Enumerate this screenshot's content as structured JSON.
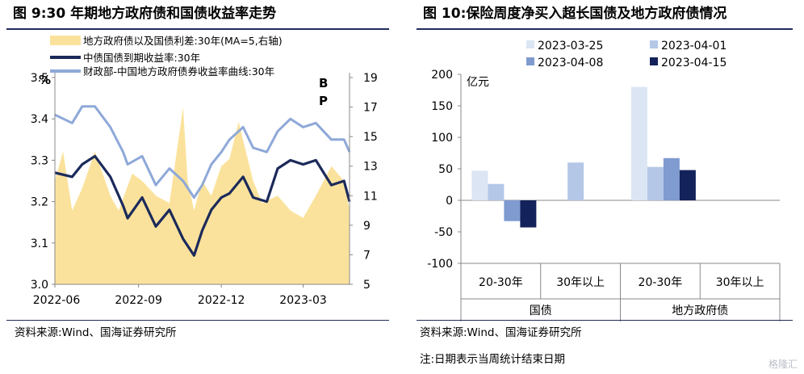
{
  "left": {
    "title": "图 9:30 年期地方政府债和国债收益率走势",
    "source": "资料来源:Wind、国海证券研究所",
    "chart_data": {
      "type": "line",
      "left_axis_unit": "%",
      "right_axis_unit": "BP",
      "left_ylim": [
        3.0,
        3.5
      ],
      "left_ticks": [
        "3.0",
        "3.1",
        "3.2",
        "3.3",
        "3.4",
        "3.5"
      ],
      "right_ylim": [
        5,
        19
      ],
      "right_ticks": [
        "5",
        "7",
        "9",
        "11",
        "13",
        "15",
        "17",
        "19"
      ],
      "x_ticks": [
        "2022-06",
        "2022-09",
        "2022-12",
        "2023-03"
      ],
      "x_range": [
        "2022-06-01",
        "2023-04-21"
      ],
      "series": [
        {
          "name": "地方政府债以及国债利差:30年(MA=5,右轴)",
          "kind": "area",
          "axis": "right",
          "color": "#fbe29c",
          "x": [
            "2022-06-01",
            "2022-06-10",
            "2022-06-20",
            "2022-07-01",
            "2022-07-15",
            "2022-08-01",
            "2022-08-10",
            "2022-08-25",
            "2022-09-05",
            "2022-09-20",
            "2022-10-05",
            "2022-10-20",
            "2022-10-25",
            "2022-11-01",
            "2022-11-10",
            "2022-11-20",
            "2022-12-01",
            "2022-12-10",
            "2022-12-20",
            "2023-01-05",
            "2023-01-15",
            "2023-02-01",
            "2023-02-15",
            "2023-03-01",
            "2023-03-15",
            "2023-04-01",
            "2023-04-15",
            "2023-04-21"
          ],
          "values": [
            12.0,
            14.0,
            10.0,
            11.5,
            14.0,
            11.0,
            10.0,
            12.5,
            12.0,
            11.0,
            10.5,
            17.0,
            12.0,
            10.0,
            12.0,
            11.0,
            13.0,
            13.5,
            16.0,
            12.0,
            10.5,
            11.0,
            10.0,
            9.5,
            11.0,
            13.0,
            12.0,
            10.0
          ]
        },
        {
          "name": "中债国债到期收益率:30年",
          "kind": "line",
          "axis": "left",
          "color": "#1b2a5a",
          "x": [
            "2022-06-01",
            "2022-06-20",
            "2022-07-01",
            "2022-07-15",
            "2022-08-01",
            "2022-08-15",
            "2022-08-20",
            "2022-09-05",
            "2022-09-20",
            "2022-10-05",
            "2022-10-20",
            "2022-11-01",
            "2022-11-10",
            "2022-11-20",
            "2022-12-01",
            "2022-12-10",
            "2022-12-25",
            "2023-01-05",
            "2023-01-20",
            "2023-02-01",
            "2023-02-15",
            "2023-03-01",
            "2023-03-15",
            "2023-04-01",
            "2023-04-15",
            "2023-04-21"
          ],
          "values": [
            3.27,
            3.26,
            3.29,
            3.31,
            3.26,
            3.19,
            3.16,
            3.21,
            3.14,
            3.18,
            3.11,
            3.07,
            3.13,
            3.18,
            3.21,
            3.22,
            3.26,
            3.21,
            3.2,
            3.28,
            3.3,
            3.29,
            3.3,
            3.24,
            3.25,
            3.2
          ]
        },
        {
          "name": "财政部-中国地方政府债券收益率曲线:30年",
          "kind": "line",
          "axis": "left",
          "color": "#8ea8d8",
          "x": [
            "2022-06-01",
            "2022-06-20",
            "2022-07-01",
            "2022-07-15",
            "2022-08-01",
            "2022-08-15",
            "2022-08-20",
            "2022-09-05",
            "2022-09-20",
            "2022-10-05",
            "2022-10-20",
            "2022-11-01",
            "2022-11-10",
            "2022-11-20",
            "2022-12-01",
            "2022-12-10",
            "2022-12-25",
            "2023-01-05",
            "2023-01-20",
            "2023-02-01",
            "2023-02-15",
            "2023-03-01",
            "2023-03-15",
            "2023-04-01",
            "2023-04-15",
            "2023-04-21"
          ],
          "values": [
            3.41,
            3.39,
            3.43,
            3.43,
            3.38,
            3.32,
            3.29,
            3.31,
            3.24,
            3.28,
            3.25,
            3.21,
            3.24,
            3.29,
            3.32,
            3.35,
            3.38,
            3.33,
            3.32,
            3.37,
            3.4,
            3.38,
            3.39,
            3.35,
            3.35,
            3.32
          ]
        }
      ]
    }
  },
  "right": {
    "title": "图 10:保险周度净买入超长国债及地方政府债情况",
    "source": "资料来源:Wind、国海证券研究所",
    "note": "注:日期表示当周统计结束日期",
    "chart_data": {
      "type": "bar",
      "unit": "亿元",
      "ylim": [
        -100,
        200
      ],
      "y_ticks": [
        "200",
        "150",
        "100",
        "50",
        "0",
        "-50",
        "-100"
      ],
      "categories": [
        "20-30年",
        "30年以上",
        "20-30年",
        "30年以上"
      ],
      "groups": [
        "国债",
        "地方政府债"
      ],
      "series": [
        {
          "name": "2023-03-25",
          "color": "#dce5f4",
          "values": [
            47,
            0,
            180,
            0
          ]
        },
        {
          "name": "2023-04-01",
          "color": "#b4c7e7",
          "values": [
            26,
            60,
            53,
            0
          ]
        },
        {
          "name": "2023-04-08",
          "color": "#7f9bd0",
          "values": [
            -33,
            0,
            67,
            0
          ]
        },
        {
          "name": "2023-04-15",
          "color": "#13225a",
          "values": [
            -43,
            0,
            48,
            0
          ]
        }
      ]
    }
  },
  "watermark": "格隆汇"
}
